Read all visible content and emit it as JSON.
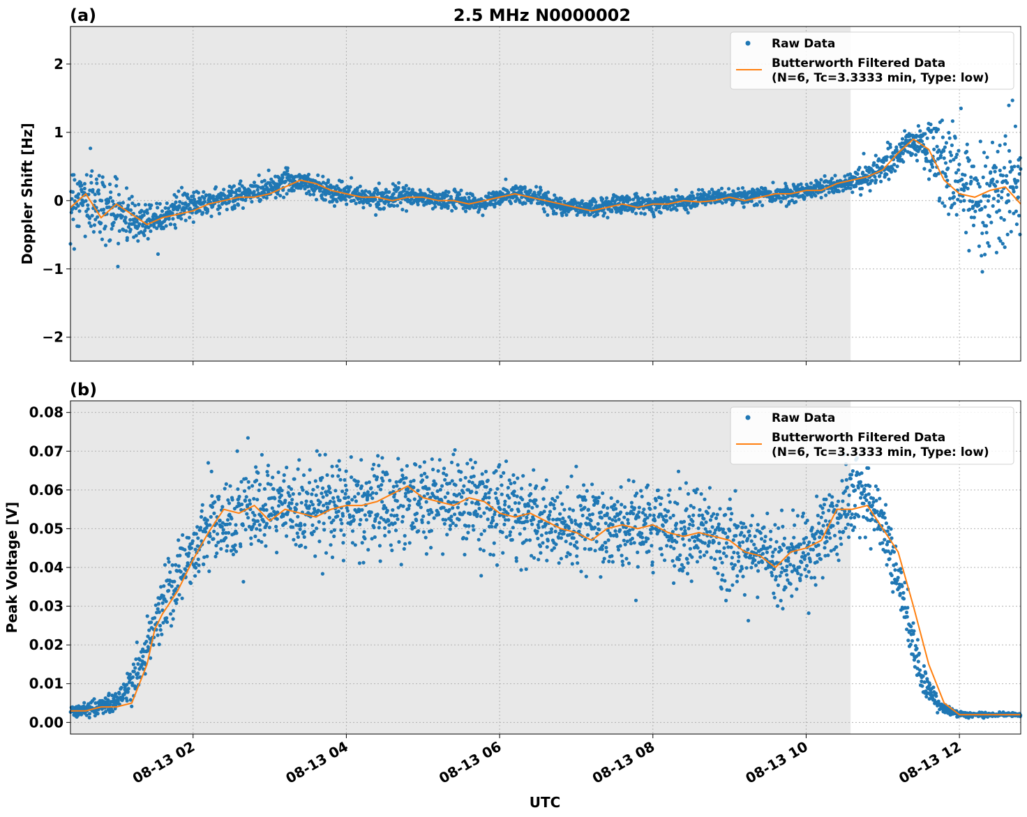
{
  "figure": {
    "title": "2.5 MHz N0000002",
    "xlabel": "UTC",
    "x_tick_labels": [
      "08-13 02",
      "08-13 04",
      "08-13 06",
      "08-13 08",
      "08-13 10",
      "08-13 12"
    ],
    "legend": {
      "raw": "Raw Data",
      "filtered_line1": "Butterworth Filtered Data",
      "filtered_line2": "(N=6, Tc=3.3333 min, Type: low)"
    },
    "colors": {
      "raw": "#1f77b4",
      "filtered": "#ff7f0e",
      "shade": "#e8e8e8",
      "grid": "#b0b0b0"
    }
  },
  "chart_data": [
    {
      "type": "scatter",
      "panel_label": "(a)",
      "title": "2.5 MHz N0000002",
      "xlabel": "",
      "ylabel": "Doppler Shift [Hz]",
      "x_unit": "hours UTC on 08-13",
      "xlim": [
        0.4,
        12.8
      ],
      "ylim": [
        -2.35,
        2.55
      ],
      "yticks": [
        -2,
        -1,
        0,
        1,
        2
      ],
      "ytick_labels": [
        "−2",
        "−1",
        "0",
        "1",
        "2"
      ],
      "grid": true,
      "legend_position": "top-right",
      "shaded_region": [
        0.4,
        10.58
      ],
      "series": [
        {
          "name": "Raw Data",
          "style": "points",
          "x": [
            0.5,
            0.75,
            1.0,
            1.25,
            1.5,
            1.75,
            2.0,
            2.25,
            2.5,
            2.75,
            3.0,
            3.25,
            3.5,
            3.75,
            4.0,
            4.25,
            4.5,
            4.75,
            5.0,
            5.25,
            5.5,
            5.75,
            6.0,
            6.25,
            6.5,
            6.75,
            7.0,
            7.25,
            7.5,
            7.75,
            8.0,
            8.25,
            8.5,
            8.75,
            9.0,
            9.25,
            9.5,
            9.75,
            10.0,
            10.25,
            10.5,
            10.75,
            11.0,
            11.25,
            11.5,
            11.75,
            12.0,
            12.25,
            12.5,
            12.75
          ],
          "y_center": [
            0.05,
            -0.05,
            -0.15,
            -0.3,
            -0.25,
            -0.15,
            -0.05,
            0.0,
            0.05,
            0.1,
            0.2,
            0.3,
            0.25,
            0.15,
            0.1,
            0.05,
            0.05,
            0.05,
            0.05,
            0.0,
            0.0,
            -0.05,
            0.05,
            0.1,
            0.05,
            -0.05,
            -0.1,
            -0.1,
            -0.05,
            -0.05,
            -0.05,
            -0.02,
            0.0,
            0.05,
            0.05,
            0.05,
            0.1,
            0.1,
            0.15,
            0.2,
            0.25,
            0.35,
            0.45,
            0.75,
            0.85,
            0.6,
            0.2,
            0.1,
            0.1,
            0.2
          ],
          "y_spread": [
            0.55,
            0.6,
            0.45,
            0.35,
            0.3,
            0.25,
            0.22,
            0.2,
            0.2,
            0.2,
            0.2,
            0.2,
            0.2,
            0.2,
            0.18,
            0.15,
            0.15,
            0.15,
            0.15,
            0.15,
            0.15,
            0.15,
            0.15,
            0.18,
            0.15,
            0.15,
            0.15,
            0.15,
            0.15,
            0.15,
            0.15,
            0.12,
            0.12,
            0.12,
            0.12,
            0.12,
            0.14,
            0.14,
            0.15,
            0.15,
            0.15,
            0.2,
            0.25,
            0.3,
            0.3,
            0.7,
            0.9,
            0.95,
            1.0,
            1.0
          ]
        },
        {
          "name": "Butterworth Filtered Data\n(N=6, Tc=3.3333 min, Type: low)",
          "style": "line",
          "x": [
            0.4,
            0.6,
            0.8,
            1.0,
            1.2,
            1.4,
            1.6,
            1.8,
            2.0,
            2.2,
            2.4,
            2.6,
            2.8,
            3.0,
            3.2,
            3.4,
            3.6,
            3.8,
            4.0,
            4.2,
            4.4,
            4.6,
            4.8,
            5.0,
            5.2,
            5.4,
            5.6,
            5.8,
            6.0,
            6.2,
            6.4,
            6.6,
            6.8,
            7.0,
            7.2,
            7.4,
            7.6,
            7.8,
            8.0,
            8.2,
            8.4,
            8.6,
            8.8,
            9.0,
            9.2,
            9.4,
            9.6,
            9.8,
            10.0,
            10.2,
            10.4,
            10.6,
            10.8,
            11.0,
            11.2,
            11.4,
            11.6,
            11.8,
            12.0,
            12.2,
            12.4,
            12.6,
            12.8
          ],
          "y": [
            -0.1,
            0.1,
            -0.25,
            -0.05,
            -0.2,
            -0.35,
            -0.25,
            -0.2,
            -0.15,
            -0.05,
            0.0,
            0.05,
            0.05,
            0.1,
            0.2,
            0.3,
            0.25,
            0.15,
            0.1,
            0.05,
            0.05,
            0.0,
            0.05,
            0.05,
            0.0,
            0.0,
            -0.05,
            0.0,
            0.05,
            0.1,
            0.05,
            0.0,
            -0.05,
            -0.1,
            -0.15,
            -0.1,
            -0.05,
            -0.1,
            -0.05,
            -0.05,
            0.0,
            -0.02,
            0.0,
            0.05,
            0.0,
            0.05,
            0.1,
            0.1,
            0.15,
            0.15,
            0.25,
            0.3,
            0.35,
            0.45,
            0.7,
            0.9,
            0.75,
            0.3,
            0.1,
            0.05,
            0.15,
            0.2,
            -0.05
          ]
        }
      ]
    },
    {
      "type": "scatter",
      "panel_label": "(b)",
      "title": "",
      "xlabel": "UTC",
      "ylabel": "Peak Voltage [V]",
      "x_unit": "hours UTC on 08-13",
      "xlim": [
        0.4,
        12.8
      ],
      "ylim": [
        -0.003,
        0.083
      ],
      "yticks": [
        0.0,
        0.01,
        0.02,
        0.03,
        0.04,
        0.05,
        0.06,
        0.07,
        0.08
      ],
      "ytick_labels": [
        "0.00",
        "0.01",
        "0.02",
        "0.03",
        "0.04",
        "0.05",
        "0.06",
        "0.07",
        "0.08"
      ],
      "grid": true,
      "legend_position": "top-right",
      "shaded_region": [
        0.4,
        10.58
      ],
      "series": [
        {
          "name": "Raw Data",
          "style": "points",
          "x": [
            0.5,
            0.75,
            1.0,
            1.25,
            1.5,
            1.75,
            2.0,
            2.25,
            2.5,
            2.75,
            3.0,
            3.25,
            3.5,
            3.75,
            4.0,
            4.25,
            4.5,
            4.75,
            5.0,
            5.25,
            5.5,
            5.75,
            6.0,
            6.25,
            6.5,
            6.75,
            7.0,
            7.25,
            7.5,
            7.75,
            8.0,
            8.25,
            8.5,
            8.75,
            9.0,
            9.25,
            9.5,
            9.75,
            10.0,
            10.25,
            10.5,
            10.75,
            11.0,
            11.25,
            11.5,
            11.75,
            12.0,
            12.25,
            12.5,
            12.75
          ],
          "y_center": [
            0.003,
            0.004,
            0.005,
            0.012,
            0.025,
            0.036,
            0.045,
            0.051,
            0.053,
            0.054,
            0.054,
            0.055,
            0.055,
            0.056,
            0.056,
            0.056,
            0.056,
            0.057,
            0.057,
            0.057,
            0.057,
            0.056,
            0.055,
            0.053,
            0.052,
            0.051,
            0.05,
            0.05,
            0.05,
            0.05,
            0.05,
            0.05,
            0.049,
            0.048,
            0.046,
            0.044,
            0.043,
            0.042,
            0.045,
            0.05,
            0.055,
            0.058,
            0.05,
            0.032,
            0.012,
            0.004,
            0.002,
            0.002,
            0.002,
            0.002
          ],
          "y_spread": [
            0.0015,
            0.002,
            0.003,
            0.006,
            0.009,
            0.01,
            0.011,
            0.012,
            0.012,
            0.012,
            0.012,
            0.012,
            0.012,
            0.013,
            0.013,
            0.013,
            0.013,
            0.013,
            0.013,
            0.013,
            0.013,
            0.013,
            0.012,
            0.012,
            0.012,
            0.012,
            0.012,
            0.012,
            0.012,
            0.012,
            0.012,
            0.012,
            0.012,
            0.012,
            0.012,
            0.012,
            0.012,
            0.012,
            0.012,
            0.012,
            0.012,
            0.012,
            0.01,
            0.008,
            0.005,
            0.0015,
            0.0008,
            0.0006,
            0.0006,
            0.0006
          ]
        },
        {
          "name": "Butterworth Filtered Data\n(N=6, Tc=3.3333 min, Type: low)",
          "style": "line",
          "x": [
            0.4,
            0.6,
            0.8,
            1.0,
            1.2,
            1.4,
            1.5,
            1.6,
            1.8,
            2.0,
            2.2,
            2.4,
            2.6,
            2.8,
            3.0,
            3.2,
            3.4,
            3.6,
            3.8,
            4.0,
            4.2,
            4.4,
            4.6,
            4.8,
            5.0,
            5.2,
            5.4,
            5.6,
            5.8,
            6.0,
            6.2,
            6.4,
            6.6,
            6.8,
            7.0,
            7.2,
            7.4,
            7.6,
            7.8,
            8.0,
            8.2,
            8.4,
            8.6,
            8.8,
            9.0,
            9.2,
            9.4,
            9.6,
            9.8,
            10.0,
            10.2,
            10.4,
            10.6,
            10.8,
            11.0,
            11.2,
            11.4,
            11.6,
            11.8,
            12.0,
            12.2,
            12.4,
            12.6,
            12.8
          ],
          "y": [
            0.003,
            0.003,
            0.004,
            0.004,
            0.005,
            0.015,
            0.024,
            0.028,
            0.034,
            0.042,
            0.049,
            0.055,
            0.054,
            0.056,
            0.052,
            0.055,
            0.054,
            0.053,
            0.055,
            0.056,
            0.056,
            0.057,
            0.059,
            0.061,
            0.058,
            0.057,
            0.056,
            0.058,
            0.057,
            0.054,
            0.053,
            0.054,
            0.052,
            0.05,
            0.049,
            0.047,
            0.05,
            0.051,
            0.05,
            0.051,
            0.049,
            0.048,
            0.049,
            0.048,
            0.047,
            0.044,
            0.043,
            0.04,
            0.044,
            0.045,
            0.047,
            0.055,
            0.055,
            0.056,
            0.05,
            0.044,
            0.03,
            0.015,
            0.005,
            0.002,
            0.002,
            0.002,
            0.002,
            0.002
          ]
        }
      ]
    }
  ]
}
